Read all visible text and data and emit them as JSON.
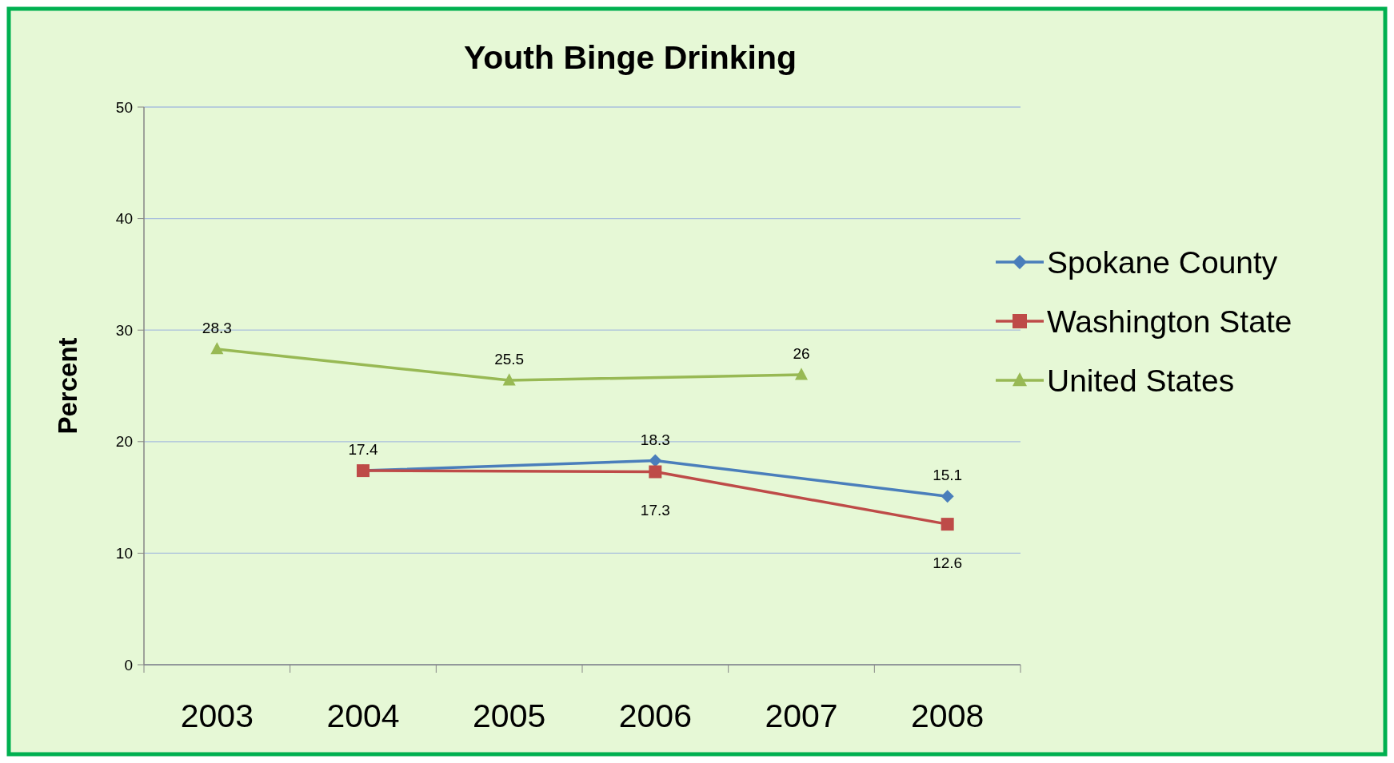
{
  "chart_data": {
    "type": "line",
    "title": "Youth Binge Drinking",
    "ylabel": "Percent",
    "categories": [
      "2003",
      "2004",
      "2005",
      "2006",
      "2007",
      "2008"
    ],
    "ylim": [
      0,
      50
    ],
    "yticks": [
      0,
      10,
      20,
      30,
      40,
      50
    ],
    "grid": "y",
    "legend": "right",
    "series": [
      {
        "name": "Spokane County",
        "color": "#4a7ebb",
        "marker": "diamond",
        "values": [
          null,
          17.4,
          null,
          18.3,
          null,
          15.1
        ],
        "value_labels": [
          null,
          "17.4",
          null,
          "18.3",
          null,
          "15.1"
        ]
      },
      {
        "name": "Washington State",
        "color": "#be4b48",
        "marker": "square",
        "values": [
          null,
          17.4,
          null,
          17.3,
          null,
          12.6
        ],
        "value_labels": [
          null,
          null,
          null,
          "17.3",
          null,
          "12.6"
        ]
      },
      {
        "name": "United States",
        "color": "#98b954",
        "marker": "triangle",
        "values": [
          28.3,
          null,
          25.5,
          null,
          26,
          null
        ],
        "value_labels": [
          "28.3",
          null,
          "25.5",
          null,
          "26",
          null
        ]
      }
    ]
  }
}
